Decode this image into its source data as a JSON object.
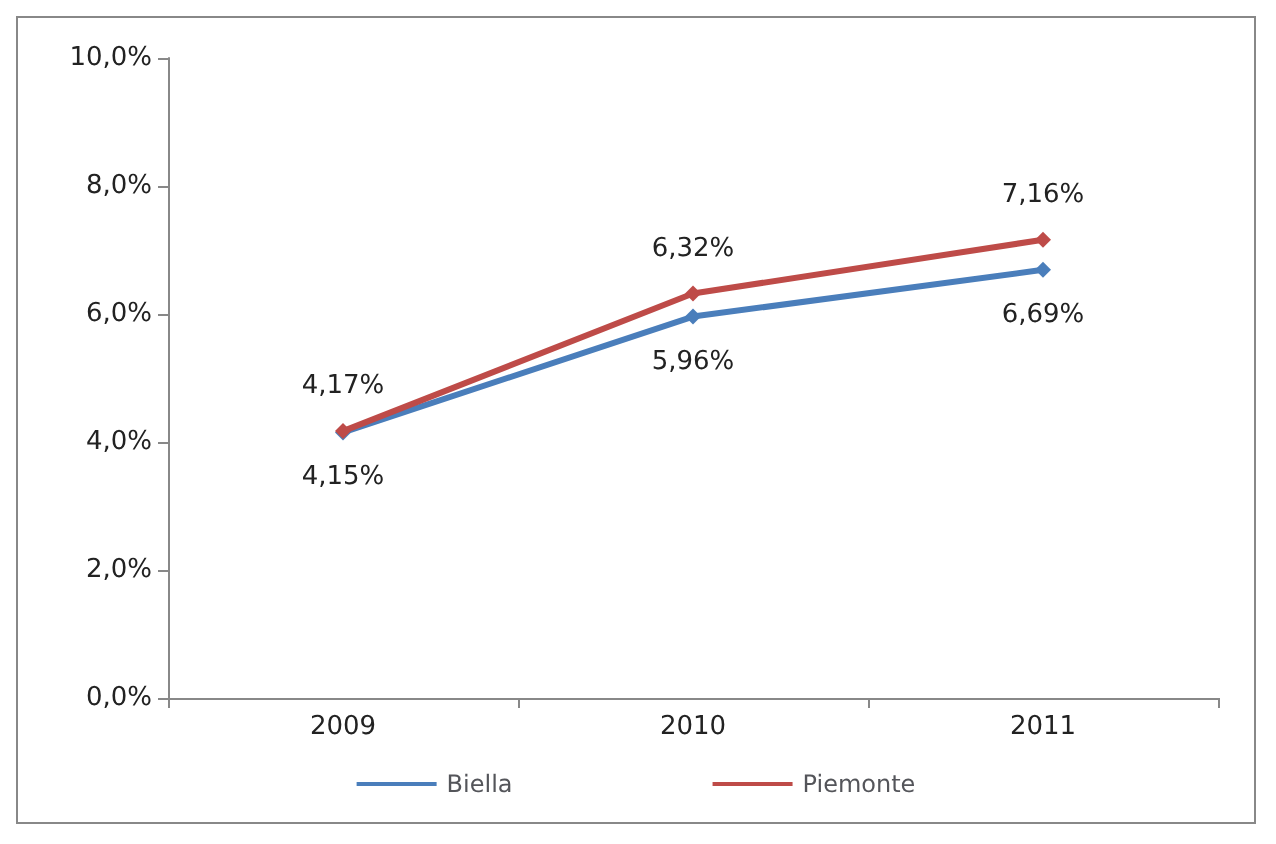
{
  "chart_data": {
    "type": "line",
    "categories": [
      "2009",
      "2010",
      "2011"
    ],
    "series": [
      {
        "name": "Biella",
        "color": "#4a7ebb",
        "values": [
          4.15,
          5.96,
          6.69
        ],
        "value_labels": [
          "4,15%",
          "5,96%",
          "6,69%"
        ]
      },
      {
        "name": "Piemonte",
        "color": "#be4b48",
        "values": [
          4.17,
          6.32,
          7.16
        ],
        "value_labels": [
          "4,17%",
          "6,32%",
          "7,16%"
        ]
      }
    ],
    "ylim": [
      0,
      10
    ],
    "yticks": [
      {
        "value": 0,
        "label": "0,0%"
      },
      {
        "value": 2,
        "label": "2,0%"
      },
      {
        "value": 4,
        "label": "4,0%"
      },
      {
        "value": 6,
        "label": "6,0%"
      },
      {
        "value": 8,
        "label": "8,0%"
      },
      {
        "value": 10,
        "label": "10,0%"
      }
    ],
    "legend": "bottom",
    "marker": "diamond",
    "line_style": "solid",
    "grid": false
  }
}
